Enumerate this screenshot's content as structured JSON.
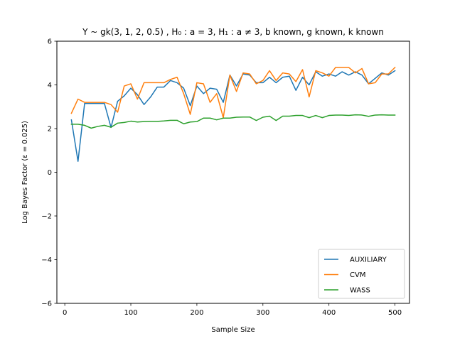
{
  "chart_data": {
    "type": "line",
    "title": "Y ~ gk(3, 1, 2, 0.5) , H₀ : a = 3, H₁ : a ≠ 3,  b known, g known, k known",
    "xlabel": "Sample Size",
    "ylabel": "Log Bayes Factor (ε = 0.025)",
    "xlim": [
      -12,
      522
    ],
    "ylim": [
      -6,
      6
    ],
    "xticks": [
      0,
      100,
      200,
      300,
      400,
      500
    ],
    "yticks": [
      -6,
      -4,
      -2,
      0,
      2,
      4,
      6
    ],
    "xtick_labels": [
      "0",
      "100",
      "200",
      "300",
      "400",
      "500"
    ],
    "ytick_labels": [
      "−6",
      "−4",
      "−2",
      "0",
      "2",
      "4",
      "6"
    ],
    "grid": false,
    "legend_position": "lower-right",
    "x": [
      10,
      20,
      30,
      40,
      50,
      60,
      70,
      80,
      90,
      100,
      110,
      120,
      130,
      140,
      150,
      160,
      170,
      180,
      190,
      200,
      210,
      220,
      230,
      240,
      250,
      260,
      270,
      280,
      290,
      300,
      310,
      320,
      330,
      340,
      350,
      360,
      370,
      380,
      390,
      400,
      410,
      420,
      430,
      440,
      450,
      460,
      470,
      480,
      490,
      500
    ],
    "series": [
      {
        "name": "AUXILIARY",
        "color": "#1f77b4",
        "values": [
          2.4,
          0.5,
          3.15,
          3.15,
          3.15,
          3.15,
          2.05,
          3.25,
          3.5,
          3.85,
          3.55,
          3.1,
          3.45,
          3.9,
          3.9,
          4.2,
          4.1,
          3.85,
          3.05,
          3.95,
          3.6,
          3.85,
          3.8,
          3.2,
          4.45,
          3.95,
          4.5,
          4.45,
          4.1,
          4.1,
          4.35,
          4.1,
          4.35,
          4.4,
          3.75,
          4.35,
          4.0,
          4.6,
          4.4,
          4.5,
          4.4,
          4.6,
          4.45,
          4.6,
          4.45,
          4.05,
          4.3,
          4.55,
          4.45,
          4.65
        ]
      },
      {
        "name": "CVM",
        "color": "#ff7f0e",
        "values": [
          2.7,
          3.35,
          3.2,
          3.2,
          3.2,
          3.2,
          3.1,
          2.75,
          3.95,
          4.05,
          3.35,
          4.1,
          4.1,
          4.1,
          4.1,
          4.25,
          4.35,
          3.6,
          2.65,
          4.1,
          4.05,
          3.2,
          3.6,
          2.5,
          4.45,
          3.7,
          4.55,
          4.5,
          4.05,
          4.2,
          4.65,
          4.2,
          4.55,
          4.5,
          4.15,
          4.7,
          3.45,
          4.65,
          4.55,
          4.4,
          4.8,
          4.8,
          4.8,
          4.55,
          4.75,
          4.05,
          4.1,
          4.5,
          4.5,
          4.8
        ]
      },
      {
        "name": "WASS",
        "color": "#2ca02c",
        "values": [
          2.2,
          2.2,
          2.15,
          2.02,
          2.1,
          2.15,
          2.06,
          2.25,
          2.28,
          2.34,
          2.3,
          2.32,
          2.33,
          2.33,
          2.35,
          2.38,
          2.38,
          2.22,
          2.3,
          2.32,
          2.48,
          2.48,
          2.4,
          2.48,
          2.48,
          2.52,
          2.53,
          2.53,
          2.37,
          2.52,
          2.57,
          2.37,
          2.57,
          2.57,
          2.6,
          2.6,
          2.5,
          2.6,
          2.5,
          2.6,
          2.62,
          2.62,
          2.6,
          2.63,
          2.62,
          2.56,
          2.62,
          2.63,
          2.62,
          2.62
        ]
      }
    ]
  }
}
